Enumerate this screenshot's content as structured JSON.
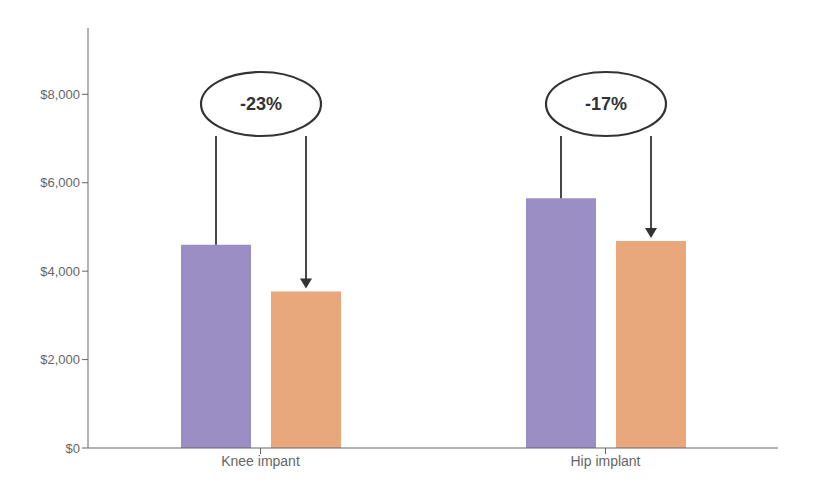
{
  "chart_data": {
    "type": "bar",
    "categories": [
      "Knee impant",
      "Hip implant"
    ],
    "series": [
      {
        "color": "#9B8EC4",
        "values": [
          4600,
          5650
        ]
      },
      {
        "color": "#E8A87C",
        "values": [
          3540,
          4680
        ]
      }
    ],
    "ylim": [
      0,
      9500
    ],
    "yticks": [
      {
        "value": 0,
        "label": "$0"
      },
      {
        "value": 2000,
        "label": "$2,000"
      },
      {
        "value": 4000,
        "label": "$4,000"
      },
      {
        "value": 6000,
        "label": "$6,000"
      },
      {
        "value": 8000,
        "label": "$8,000"
      }
    ],
    "grid": false,
    "annotations": [
      "-23%",
      "-17%"
    ]
  }
}
